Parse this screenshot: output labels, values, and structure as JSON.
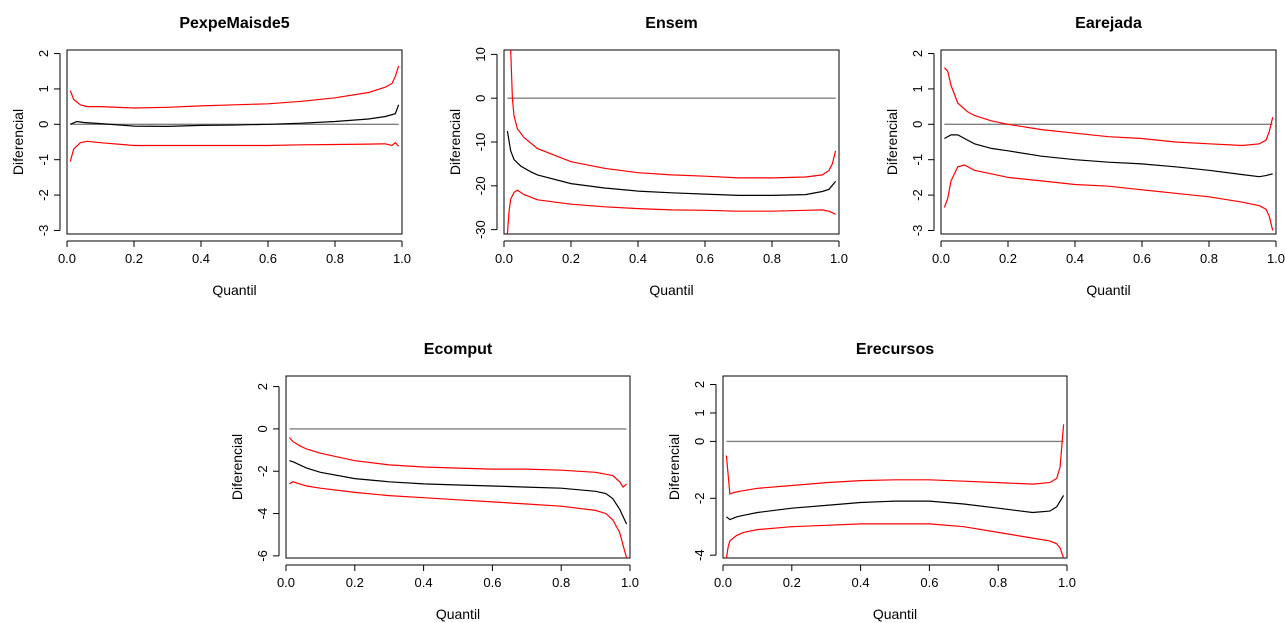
{
  "chart_data": [
    {
      "type": "line",
      "title": "PexpeMaisde5",
      "xlabel": "Quantil",
      "ylabel": "Diferencial",
      "xlim": [
        0,
        1
      ],
      "ylim": [
        -3.1,
        2.1
      ],
      "xticks": [
        0,
        0.2,
        0.4,
        0.6,
        0.8,
        1
      ],
      "xtick_labels": [
        "0.0",
        "0.2",
        "0.4",
        "0.6",
        "0.8",
        "1.0"
      ],
      "yticks": [
        -3,
        -2,
        -1,
        0,
        1,
        2
      ],
      "ytick_labels": [
        "-3",
        "-2",
        "-1",
        "0",
        "1",
        "2"
      ],
      "reference_line": 0,
      "grid": false,
      "colors": {
        "estimate": "#000000",
        "bounds": "#ff0000",
        "reference": "#808080"
      },
      "series": [
        {
          "role": "upper",
          "x": [
            0.01,
            0.02,
            0.04,
            0.06,
            0.1,
            0.2,
            0.3,
            0.4,
            0.5,
            0.6,
            0.7,
            0.8,
            0.9,
            0.95,
            0.97,
            0.98,
            0.99
          ],
          "y": [
            0.95,
            0.7,
            0.55,
            0.5,
            0.5,
            0.46,
            0.48,
            0.52,
            0.55,
            0.58,
            0.65,
            0.75,
            0.9,
            1.05,
            1.15,
            1.35,
            1.65
          ]
        },
        {
          "role": "estimate",
          "x": [
            0.01,
            0.03,
            0.05,
            0.1,
            0.2,
            0.3,
            0.4,
            0.5,
            0.6,
            0.7,
            0.8,
            0.9,
            0.95,
            0.98,
            0.99
          ],
          "y": [
            0.0,
            0.08,
            0.05,
            0.02,
            -0.05,
            -0.06,
            -0.03,
            -0.02,
            0.0,
            0.03,
            0.08,
            0.15,
            0.22,
            0.3,
            0.55
          ]
        },
        {
          "role": "lower",
          "x": [
            0.01,
            0.02,
            0.04,
            0.06,
            0.1,
            0.2,
            0.3,
            0.4,
            0.5,
            0.6,
            0.7,
            0.8,
            0.9,
            0.95,
            0.97,
            0.98,
            0.99
          ],
          "y": [
            -1.05,
            -0.7,
            -0.52,
            -0.48,
            -0.52,
            -0.6,
            -0.6,
            -0.6,
            -0.6,
            -0.6,
            -0.58,
            -0.57,
            -0.56,
            -0.55,
            -0.6,
            -0.52,
            -0.62
          ]
        }
      ]
    },
    {
      "type": "line",
      "title": "Ensem",
      "xlabel": "Quantil",
      "ylabel": "Diferencial",
      "xlim": [
        0,
        1
      ],
      "ylim": [
        -31,
        11
      ],
      "xticks": [
        0,
        0.2,
        0.4,
        0.6,
        0.8,
        1
      ],
      "xtick_labels": [
        "0.0",
        "0.2",
        "0.4",
        "0.6",
        "0.8",
        "1.0"
      ],
      "yticks": [
        -30,
        -20,
        -10,
        0,
        10
      ],
      "ytick_labels": [
        "-30",
        "-20",
        "-10",
        "0",
        "10"
      ],
      "reference_line": 0,
      "grid": false,
      "colors": {
        "estimate": "#000000",
        "bounds": "#ff0000",
        "reference": "#808080"
      },
      "series": [
        {
          "role": "upper",
          "x": [
            0.02,
            0.025,
            0.03,
            0.04,
            0.06,
            0.1,
            0.2,
            0.3,
            0.4,
            0.5,
            0.6,
            0.7,
            0.8,
            0.9,
            0.95,
            0.97,
            0.98,
            0.99
          ],
          "y": [
            11,
            0.0,
            -4,
            -7,
            -9,
            -11.5,
            -14.5,
            -16,
            -17,
            -17.5,
            -17.8,
            -18.2,
            -18.2,
            -18,
            -17.5,
            -16.5,
            -15,
            -12
          ]
        },
        {
          "role": "estimate",
          "x": [
            0.01,
            0.02,
            0.03,
            0.05,
            0.08,
            0.1,
            0.2,
            0.3,
            0.4,
            0.5,
            0.6,
            0.7,
            0.8,
            0.9,
            0.95,
            0.97,
            0.99
          ],
          "y": [
            -7.5,
            -12,
            -14,
            -15.5,
            -16.8,
            -17.5,
            -19.5,
            -20.5,
            -21.2,
            -21.6,
            -21.9,
            -22.2,
            -22.2,
            -22,
            -21.3,
            -20.8,
            -19
          ]
        },
        {
          "role": "lower",
          "x": [
            0.01,
            0.015,
            0.02,
            0.03,
            0.04,
            0.06,
            0.1,
            0.2,
            0.3,
            0.4,
            0.5,
            0.6,
            0.7,
            0.8,
            0.9,
            0.95,
            0.97,
            0.99
          ],
          "y": [
            -31,
            -26,
            -23,
            -21.5,
            -21,
            -22,
            -23.2,
            -24.2,
            -24.8,
            -25.2,
            -25.5,
            -25.6,
            -25.8,
            -25.8,
            -25.6,
            -25.5,
            -25.8,
            -26.5
          ]
        }
      ]
    },
    {
      "type": "line",
      "title": "Earejada",
      "xlabel": "Quantil",
      "ylabel": "Diferencial",
      "xlim": [
        0,
        1
      ],
      "ylim": [
        -3.1,
        2.1
      ],
      "xticks": [
        0,
        0.2,
        0.4,
        0.6,
        0.8,
        1
      ],
      "xtick_labels": [
        "0.0",
        "0.2",
        "0.4",
        "0.6",
        "0.8",
        "1.0"
      ],
      "yticks": [
        -3,
        -2,
        -1,
        0,
        1,
        2
      ],
      "ytick_labels": [
        "-3",
        "-2",
        "-1",
        "0",
        "1",
        "2"
      ],
      "reference_line": 0,
      "grid": false,
      "colors": {
        "estimate": "#000000",
        "bounds": "#ff0000",
        "reference": "#808080"
      },
      "series": [
        {
          "role": "upper",
          "x": [
            0.01,
            0.02,
            0.03,
            0.05,
            0.08,
            0.1,
            0.15,
            0.2,
            0.3,
            0.4,
            0.5,
            0.6,
            0.7,
            0.8,
            0.9,
            0.95,
            0.97,
            0.98,
            0.99
          ],
          "y": [
            1.6,
            1.5,
            1.1,
            0.6,
            0.35,
            0.25,
            0.1,
            0.0,
            -0.15,
            -0.25,
            -0.35,
            -0.4,
            -0.5,
            -0.55,
            -0.6,
            -0.55,
            -0.45,
            -0.2,
            0.2
          ]
        },
        {
          "role": "estimate",
          "x": [
            0.01,
            0.03,
            0.05,
            0.07,
            0.1,
            0.15,
            0.2,
            0.3,
            0.4,
            0.5,
            0.6,
            0.7,
            0.8,
            0.9,
            0.95,
            0.97,
            0.99
          ],
          "y": [
            -0.4,
            -0.3,
            -0.3,
            -0.4,
            -0.55,
            -0.68,
            -0.75,
            -0.9,
            -1.0,
            -1.07,
            -1.12,
            -1.2,
            -1.3,
            -1.42,
            -1.48,
            -1.45,
            -1.4
          ]
        },
        {
          "role": "lower",
          "x": [
            0.01,
            0.02,
            0.03,
            0.05,
            0.07,
            0.1,
            0.15,
            0.2,
            0.3,
            0.4,
            0.5,
            0.6,
            0.7,
            0.8,
            0.9,
            0.95,
            0.97,
            0.98,
            0.99
          ],
          "y": [
            -2.35,
            -2.1,
            -1.6,
            -1.2,
            -1.15,
            -1.3,
            -1.4,
            -1.5,
            -1.6,
            -1.7,
            -1.75,
            -1.85,
            -1.95,
            -2.05,
            -2.2,
            -2.3,
            -2.4,
            -2.6,
            -3.0
          ]
        }
      ]
    },
    {
      "type": "line",
      "title": "Ecomput",
      "xlabel": "Quantil",
      "ylabel": "Diferencial",
      "xlim": [
        0,
        1
      ],
      "ylim": [
        -6.1,
        2.5
      ],
      "xticks": [
        0,
        0.2,
        0.4,
        0.6,
        0.8,
        1
      ],
      "xtick_labels": [
        "0.0",
        "0.2",
        "0.4",
        "0.6",
        "0.8",
        "1.0"
      ],
      "yticks": [
        -6,
        -4,
        -2,
        0,
        2
      ],
      "ytick_labels": [
        "-6",
        "-4",
        "-2",
        "0",
        "2"
      ],
      "reference_line": 0,
      "grid": false,
      "colors": {
        "estimate": "#000000",
        "bounds": "#ff0000",
        "reference": "#808080"
      },
      "series": [
        {
          "role": "upper",
          "x": [
            0.01,
            0.02,
            0.04,
            0.06,
            0.1,
            0.2,
            0.3,
            0.4,
            0.5,
            0.6,
            0.7,
            0.8,
            0.9,
            0.95,
            0.97,
            0.98,
            0.99
          ],
          "y": [
            -0.4,
            -0.6,
            -0.8,
            -0.95,
            -1.15,
            -1.5,
            -1.7,
            -1.8,
            -1.85,
            -1.9,
            -1.9,
            -1.95,
            -2.05,
            -2.2,
            -2.5,
            -2.75,
            -2.6
          ]
        },
        {
          "role": "estimate",
          "x": [
            0.01,
            0.02,
            0.04,
            0.06,
            0.1,
            0.2,
            0.3,
            0.4,
            0.5,
            0.6,
            0.7,
            0.8,
            0.9,
            0.93,
            0.95,
            0.97,
            0.99
          ],
          "y": [
            -1.5,
            -1.55,
            -1.7,
            -1.85,
            -2.05,
            -2.35,
            -2.5,
            -2.6,
            -2.65,
            -2.7,
            -2.75,
            -2.8,
            -2.95,
            -3.05,
            -3.3,
            -3.8,
            -4.5
          ]
        },
        {
          "role": "lower",
          "x": [
            0.01,
            0.02,
            0.04,
            0.06,
            0.1,
            0.2,
            0.3,
            0.4,
            0.5,
            0.6,
            0.7,
            0.8,
            0.9,
            0.93,
            0.95,
            0.97,
            0.98,
            0.99
          ],
          "y": [
            -2.6,
            -2.5,
            -2.6,
            -2.7,
            -2.8,
            -3.0,
            -3.15,
            -3.25,
            -3.35,
            -3.45,
            -3.55,
            -3.65,
            -3.85,
            -4.0,
            -4.3,
            -4.9,
            -5.5,
            -6.1
          ]
        }
      ]
    },
    {
      "type": "line",
      "title": "Erecursos",
      "xlabel": "Quantil",
      "ylabel": "Diferencial",
      "xlim": [
        0,
        1
      ],
      "ylim": [
        -4.1,
        2.3
      ],
      "xticks": [
        0,
        0.2,
        0.4,
        0.6,
        0.8,
        1
      ],
      "xtick_labels": [
        "0.0",
        "0.2",
        "0.4",
        "0.6",
        "0.8",
        "1.0"
      ],
      "yticks": [
        -4,
        -2,
        0,
        1,
        2
      ],
      "ytick_labels": [
        "-4",
        "-2",
        "0",
        "1",
        "2"
      ],
      "reference_line": 0,
      "grid": false,
      "colors": {
        "estimate": "#000000",
        "bounds": "#ff0000",
        "reference": "#808080"
      },
      "series": [
        {
          "role": "upper",
          "x": [
            0.01,
            0.015,
            0.02,
            0.03,
            0.05,
            0.1,
            0.2,
            0.3,
            0.4,
            0.5,
            0.6,
            0.7,
            0.8,
            0.9,
            0.95,
            0.97,
            0.98,
            0.99
          ],
          "y": [
            -0.5,
            -1.2,
            -1.85,
            -1.8,
            -1.75,
            -1.65,
            -1.55,
            -1.45,
            -1.38,
            -1.35,
            -1.35,
            -1.4,
            -1.45,
            -1.5,
            -1.45,
            -1.3,
            -0.9,
            0.6
          ]
        },
        {
          "role": "estimate",
          "x": [
            0.01,
            0.02,
            0.04,
            0.06,
            0.1,
            0.2,
            0.3,
            0.4,
            0.5,
            0.6,
            0.7,
            0.8,
            0.9,
            0.95,
            0.97,
            0.99
          ],
          "y": [
            -2.65,
            -2.75,
            -2.65,
            -2.6,
            -2.5,
            -2.35,
            -2.25,
            -2.15,
            -2.1,
            -2.1,
            -2.2,
            -2.35,
            -2.5,
            -2.45,
            -2.3,
            -1.9
          ]
        },
        {
          "role": "lower",
          "x": [
            0.01,
            0.015,
            0.02,
            0.04,
            0.06,
            0.1,
            0.2,
            0.3,
            0.4,
            0.5,
            0.6,
            0.7,
            0.8,
            0.9,
            0.95,
            0.97,
            0.98,
            0.99
          ],
          "y": [
            -4.1,
            -3.7,
            -3.5,
            -3.3,
            -3.2,
            -3.1,
            -3.0,
            -2.95,
            -2.9,
            -2.9,
            -2.9,
            -3.0,
            -3.2,
            -3.4,
            -3.5,
            -3.6,
            -3.75,
            -4.1
          ]
        }
      ]
    }
  ]
}
